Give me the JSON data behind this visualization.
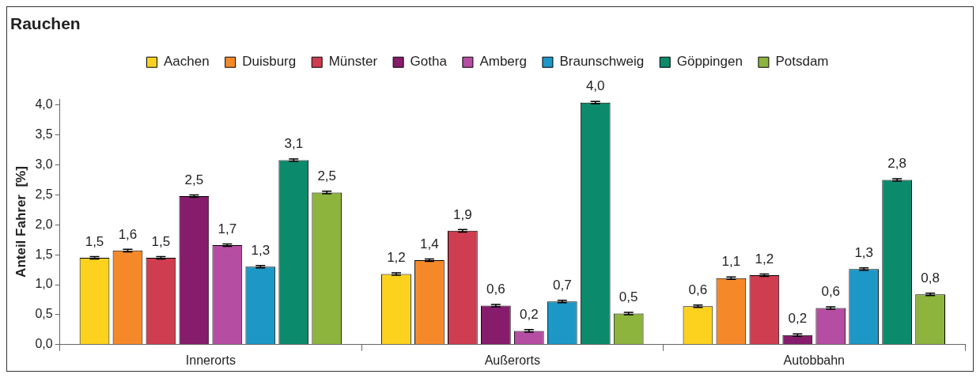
{
  "chart_data": {
    "type": "bar",
    "title": "Rauchen",
    "ylabel": "Anteil Fahrer  [%]",
    "categories": [
      "Innerorts",
      "Außerorts",
      "Autobbahn"
    ],
    "series": [
      {
        "name": "Aachen",
        "color": "#fcd21e",
        "values": [
          1.45,
          1.18,
          0.64
        ],
        "errors": [
          0.02,
          0.02,
          0.02
        ],
        "value_labels": [
          "1,5",
          "1,2",
          "0,6"
        ]
      },
      {
        "name": "Duisburg",
        "color": "#f5892a",
        "values": [
          1.57,
          1.41,
          1.11
        ],
        "errors": [
          0.02,
          0.02,
          0.02
        ],
        "value_labels": [
          "1,6",
          "1,4",
          "1,1"
        ]
      },
      {
        "name": "Münster",
        "color": "#cf3d50",
        "values": [
          1.45,
          1.9,
          1.16
        ],
        "errors": [
          0.02,
          0.02,
          0.02
        ],
        "value_labels": [
          "1,5",
          "1,9",
          "1,2"
        ]
      },
      {
        "name": "Gotha",
        "color": "#861c6b",
        "values": [
          2.48,
          0.65,
          0.16
        ],
        "errors": [
          0.02,
          0.02,
          0.02
        ],
        "value_labels": [
          "2,5",
          "0,6",
          "0,2"
        ]
      },
      {
        "name": "Amberg",
        "color": "#b54ea2",
        "values": [
          1.66,
          0.23,
          0.61
        ],
        "errors": [
          0.02,
          0.02,
          0.02
        ],
        "value_labels": [
          "1,7",
          "0,2",
          "0,6"
        ]
      },
      {
        "name": "Braunschweig",
        "color": "#1d97c6",
        "values": [
          1.3,
          0.72,
          1.26
        ],
        "errors": [
          0.02,
          0.02,
          0.02
        ],
        "value_labels": [
          "1,3",
          "0,7",
          "1,3"
        ]
      },
      {
        "name": "Göppingen",
        "color": "#0c8a6c",
        "values": [
          3.08,
          4.04,
          2.75
        ],
        "errors": [
          0.02,
          0.02,
          0.02
        ],
        "value_labels": [
          "3,1",
          "4,0",
          "2,8"
        ]
      },
      {
        "name": "Potsdam",
        "color": "#8db43d",
        "values": [
          2.54,
          0.52,
          0.84
        ],
        "errors": [
          0.02,
          0.02,
          0.02
        ],
        "value_labels": [
          "2,5",
          "0,5",
          "0,8"
        ]
      }
    ],
    "ylim": [
      0,
      4.1
    ],
    "yticks": [
      {
        "value": 0,
        "label": "0,0"
      },
      {
        "value": 0.5,
        "label": "0,5"
      },
      {
        "value": 1,
        "label": "1,0"
      },
      {
        "value": 1.5,
        "label": "1,5"
      },
      {
        "value": 2,
        "label": "2,0"
      },
      {
        "value": 2.5,
        "label": "2,5"
      },
      {
        "value": 3,
        "label": "3,0"
      },
      {
        "value": 3.5,
        "label": "3,5"
      },
      {
        "value": 4,
        "label": "4,0"
      }
    ],
    "grid": false,
    "legend": "top"
  }
}
